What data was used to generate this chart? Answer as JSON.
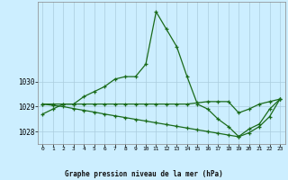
{
  "title": "Graphe pression niveau de la mer (hPa)",
  "bg_color": "#cceeff",
  "grid_color": "#aaccdd",
  "line_color": "#1a6b1a",
  "x": [
    0,
    1,
    2,
    3,
    4,
    5,
    6,
    7,
    8,
    9,
    10,
    11,
    12,
    13,
    14,
    15,
    16,
    17,
    18,
    19,
    20,
    21,
    22,
    23
  ],
  "line1": [
    1028.7,
    1028.9,
    1029.1,
    1029.1,
    1029.4,
    1029.6,
    1029.8,
    1030.1,
    1030.2,
    1030.2,
    1030.7,
    1032.8,
    1032.1,
    1031.4,
    1030.2,
    1029.1,
    1028.9,
    1028.5,
    1028.2,
    1027.8,
    1028.1,
    1028.3,
    1028.9,
    1029.3
  ],
  "line2": [
    1029.1,
    1029.1,
    1029.1,
    1029.1,
    1029.1,
    1029.1,
    1029.1,
    1029.1,
    1029.1,
    1029.1,
    1029.1,
    1029.1,
    1029.1,
    1029.1,
    1029.1,
    1029.15,
    1029.2,
    1029.2,
    1029.2,
    1028.75,
    1028.9,
    1029.1,
    1029.2,
    1029.3
  ],
  "line3": [
    1029.1,
    1029.05,
    1029.0,
    1028.92,
    1028.85,
    1028.78,
    1028.7,
    1028.63,
    1028.56,
    1028.49,
    1028.42,
    1028.35,
    1028.28,
    1028.21,
    1028.14,
    1028.07,
    1028.0,
    1027.93,
    1027.86,
    1027.79,
    1027.95,
    1028.2,
    1028.6,
    1029.3
  ],
  "ylim": [
    1027.5,
    1033.2
  ],
  "yticks": [
    1028,
    1029,
    1030
  ],
  "xticks": [
    0,
    1,
    2,
    3,
    4,
    5,
    6,
    7,
    8,
    9,
    10,
    11,
    12,
    13,
    14,
    15,
    16,
    17,
    18,
    19,
    20,
    21,
    22,
    23
  ]
}
